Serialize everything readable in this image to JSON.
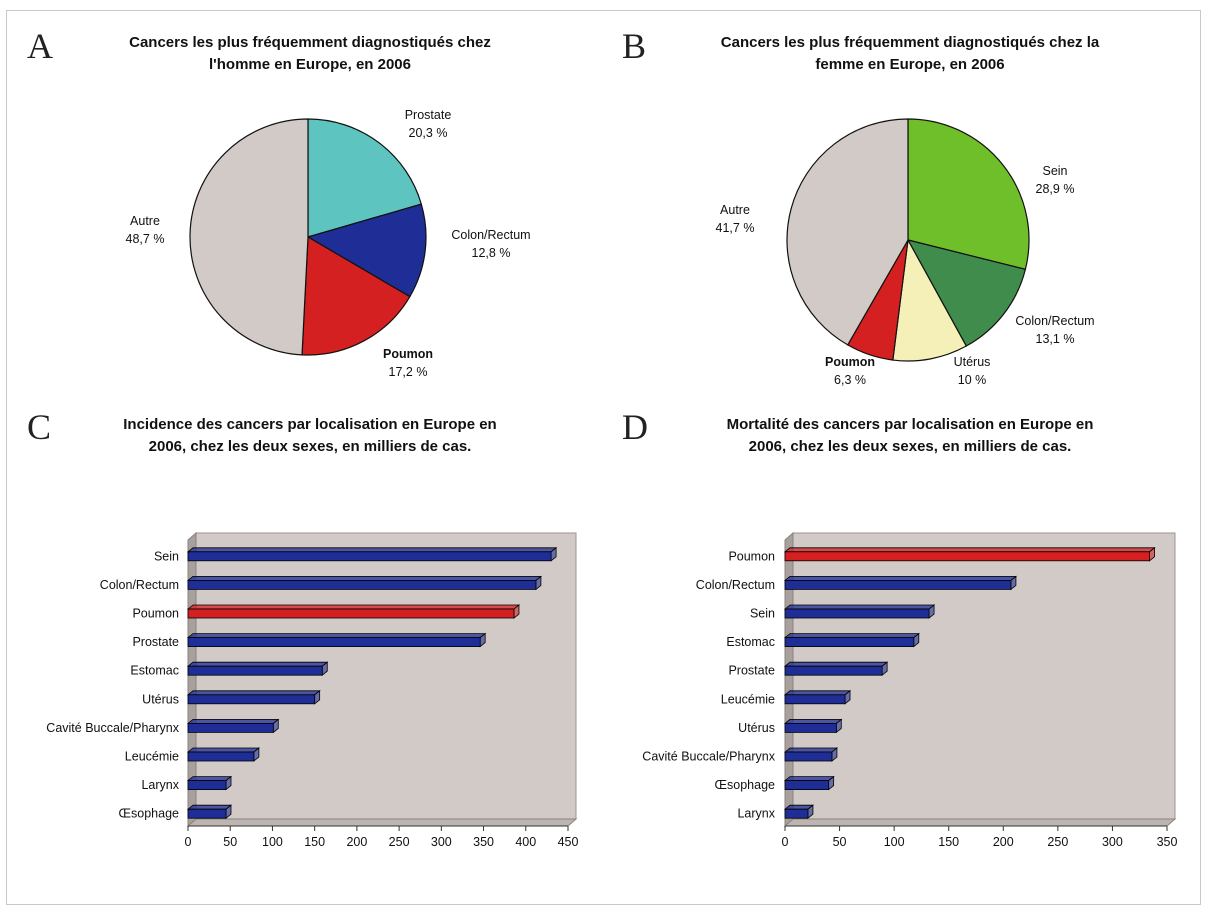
{
  "panels": {
    "a": {
      "letter": "A",
      "title_line1": "Cancers les plus fréquemment diagnostiqués chez",
      "title_line2": "l'homme en Europe, en 2006"
    },
    "b": {
      "letter": "B",
      "title_line1": "Cancers les plus fréquemment diagnostiqués chez la",
      "title_line2": "femme en Europe, en 2006"
    },
    "c": {
      "letter": "C",
      "title_line1": "Incidence des cancers par localisation en Europe en",
      "title_line2": "2006, chez les deux sexes, en milliers de cas."
    },
    "d": {
      "letter": "D",
      "title_line1": "Mortalité des cancers par localisation en Europe en",
      "title_line2": "2006, chez les deux sexes, en milliers de cas."
    }
  },
  "chart_data": [
    {
      "type": "pie",
      "title": "Cancers les plus fréquemment diagnostiqués chez l'homme en Europe, en 2006",
      "slices": [
        {
          "label": "Prostate",
          "value": 20.3,
          "display": "20,3 %",
          "color": "#5ec4c0"
        },
        {
          "label": "Colon/Rectum",
          "value": 12.8,
          "display": "12,8 %",
          "color": "#1f2e96"
        },
        {
          "label": "Poumon",
          "value": 17.2,
          "display": "17,2 %",
          "color": "#d42020",
          "bold": true
        },
        {
          "label": "Autre",
          "value": 48.7,
          "display": "48,7 %",
          "color": "#d2cac6"
        }
      ]
    },
    {
      "type": "pie",
      "title": "Cancers les plus fréquemment diagnostiqués chez la femme en Europe, en 2006",
      "slices": [
        {
          "label": "Sein",
          "value": 28.9,
          "display": "28,9 %",
          "color": "#6fbf2a"
        },
        {
          "label": "Colon/Rectum",
          "value": 13.1,
          "display": "13,1 %",
          "color": "#3f8c4c"
        },
        {
          "label": "Utérus",
          "value": 10,
          "display": "10 %",
          "color": "#f4f0b8"
        },
        {
          "label": "Poumon",
          "value": 6.3,
          "display": "6,3 %",
          "color": "#d42020",
          "bold": true
        },
        {
          "label": "Autre",
          "value": 41.7,
          "display": "41,7 %",
          "color": "#d2cac6"
        }
      ]
    },
    {
      "type": "bar",
      "orientation": "horizontal",
      "title": "Incidence des cancers par localisation en Europe en 2006, chez les deux sexes, en milliers de cas.",
      "categories": [
        "Sein",
        "Colon/Rectum",
        "Poumon",
        "Prostate",
        "Estomac",
        "Utérus",
        "Cavité Buccale/Pharynx",
        "Leucémie",
        "Larynx",
        "Œsophage"
      ],
      "values": [
        430,
        412,
        386,
        346,
        159,
        150,
        101,
        78,
        45,
        45
      ],
      "highlight": "Poumon",
      "xlim": [
        0,
        450
      ],
      "ticks": [
        0,
        50,
        100,
        150,
        200,
        250,
        300,
        350,
        400,
        450
      ],
      "grid": false
    },
    {
      "type": "bar",
      "orientation": "horizontal",
      "title": "Mortalité des cancers par localisation en Europe en 2006, chez les deux sexes, en milliers de cas.",
      "categories": [
        "Poumon",
        "Colon/Rectum",
        "Sein",
        "Estomac",
        "Prostate",
        "Leucémie",
        "Utérus",
        "Cavité Buccale/Pharynx",
        "Œsophage",
        "Larynx"
      ],
      "values": [
        334,
        207,
        132,
        118,
        89,
        55,
        47,
        43,
        40,
        21
      ],
      "highlight": "Poumon",
      "xlim": [
        0,
        350
      ],
      "ticks": [
        0,
        50,
        100,
        150,
        200,
        250,
        300,
        350
      ],
      "grid": false
    }
  ],
  "colors": {
    "bar": "#1f2e96",
    "bar_highlight": "#d42020",
    "plot_back": "#d2cac6"
  }
}
